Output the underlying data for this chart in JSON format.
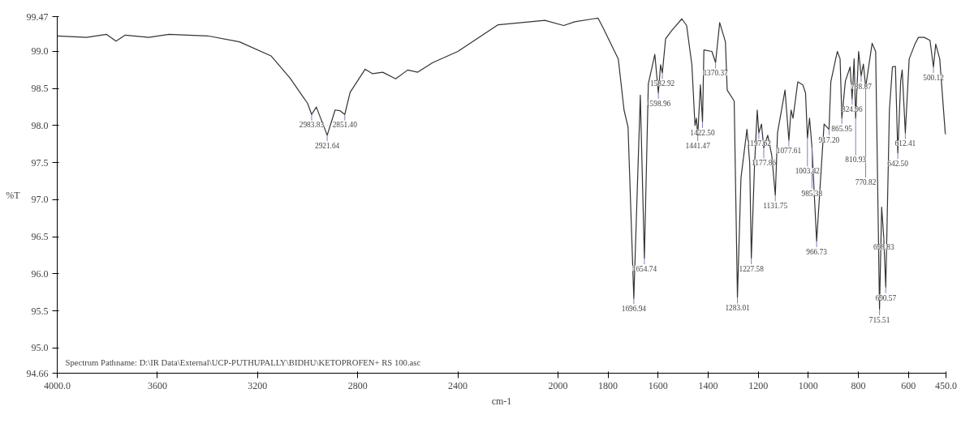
{
  "chart_data": {
    "type": "line",
    "xlabel": "cm-1",
    "ylabel": "%T",
    "xlim": [
      4000,
      450
    ],
    "ylim": [
      94.66,
      99.47
    ],
    "xticks": [
      {
        "value": 4000,
        "label": "4000.0"
      },
      3600,
      3200,
      2800,
      2400,
      2000,
      1800,
      1600,
      1400,
      1200,
      1000,
      800,
      600,
      {
        "value": 450,
        "label": "450.0"
      }
    ],
    "yticks": [
      94.66,
      {
        "value": 95,
        "label": "95.0"
      },
      95.5,
      {
        "value": 96,
        "label": "96.0"
      },
      96.5,
      {
        "value": 97,
        "label": "97.0"
      },
      97.5,
      {
        "value": 98,
        "label": "98.0"
      },
      98.5,
      {
        "value": 99,
        "label": "99.0"
      },
      99.47
    ],
    "grid": false,
    "marker": "none",
    "line_style": "solid",
    "series": [
      {
        "color": "#333333",
        "x": [
          4000,
          3883,
          3803,
          3765,
          3728,
          3634,
          3554,
          3399,
          3272,
          3146,
          3070,
          3023,
          3000,
          2983.83,
          2965,
          2921.64,
          2890,
          2870,
          2851.4,
          2830,
          2770,
          2740,
          2700,
          2648,
          2600,
          2560,
          2500,
          2400,
          2239,
          2052,
          1977,
          1933,
          1860,
          1840,
          1817,
          1759,
          1736,
          1720,
          1696.94,
          1671,
          1654.74,
          1639,
          1613,
          1598.96,
          1590,
          1582.92,
          1570,
          1546,
          1505,
          1486,
          1465,
          1452.5,
          1447,
          1441.47,
          1431,
          1422.5,
          1417,
          1385,
          1370.37,
          1354,
          1331,
          1324,
          1296,
          1283.01,
          1269,
          1245,
          1234,
          1227.58,
          1215,
          1204,
          1197.62,
          1187,
          1177.86,
          1162,
          1146,
          1131.75,
          1123,
          1093,
          1077.61,
          1069,
          1061,
          1042,
          1022,
          1011,
          1003.42,
          995,
          985.38,
          966.73,
          937,
          917.2,
          910,
          884,
          873,
          865.95,
          852,
          833,
          824.96,
          817,
          810.93,
          799,
          788.87,
          780,
          770.82,
          745,
          731,
          715.51,
          707,
          698.83,
          690.57,
          676,
          664,
          652,
          642.5,
          631,
          625,
          612.41,
          597,
          574,
          560,
          537,
          514,
          500.12,
          491,
          475,
          453,
          450
        ],
        "values": [
          99.21,
          99.19,
          99.23,
          99.14,
          99.22,
          99.19,
          99.23,
          99.21,
          99.13,
          98.94,
          98.64,
          98.41,
          98.3,
          98.15,
          98.25,
          97.87,
          98.21,
          98.2,
          98.15,
          98.45,
          98.76,
          98.7,
          98.72,
          98.63,
          98.75,
          98.72,
          98.85,
          99.0,
          99.36,
          99.42,
          99.35,
          99.4,
          99.44,
          99.45,
          99.3,
          98.9,
          98.21,
          97.98,
          95.67,
          98.41,
          96.21,
          98.56,
          98.96,
          98.44,
          98.82,
          98.71,
          99.17,
          99.28,
          99.44,
          99.35,
          98.82,
          98.0,
          98.1,
          97.87,
          98.55,
          98.05,
          99.02,
          99.0,
          98.85,
          99.39,
          99.13,
          98.48,
          98.33,
          95.68,
          97.29,
          97.95,
          97.5,
          96.21,
          97.44,
          98.21,
          97.9,
          98.02,
          97.7,
          97.87,
          97.6,
          97.06,
          97.9,
          98.48,
          97.8,
          98.21,
          98.1,
          98.59,
          98.55,
          98.44,
          97.83,
          98.1,
          97.71,
          96.44,
          98.02,
          97.95,
          98.59,
          99.0,
          98.9,
          98.1,
          98.6,
          98.79,
          98.36,
          98.9,
          98.1,
          99.0,
          98.67,
          98.83,
          98.52,
          99.11,
          99.0,
          95.52,
          96.9,
          96.5,
          95.82,
          98.21,
          98.79,
          98.8,
          97.63,
          98.6,
          98.75,
          97.9,
          98.9,
          99.1,
          99.19,
          99.19,
          99.15,
          98.79,
          99.1,
          98.9,
          97.9,
          97.88
        ]
      }
    ],
    "annotations": [
      {
        "text": "2983.83",
        "x": 2983.83,
        "y": 98.15
      },
      {
        "text": "2921.64",
        "x": 2921.64,
        "y": 97.87
      },
      {
        "text": "2851.40",
        "x": 2851.4,
        "y": 98.15
      },
      {
        "text": "1696.94",
        "x": 1696.94,
        "y": 95.67
      },
      {
        "text": "1654.74",
        "x": 1654.74,
        "y": 96.21
      },
      {
        "text": "1598.96",
        "x": 1598.96,
        "y": 98.44
      },
      {
        "text": "1582.92",
        "x": 1582.92,
        "y": 98.71
      },
      {
        "text": "1441.47",
        "x": 1441.47,
        "y": 97.87
      },
      {
        "text": "1422.50",
        "x": 1422.5,
        "y": 98.05
      },
      {
        "text": "1370.37",
        "x": 1370.37,
        "y": 98.85
      },
      {
        "text": "1283.01",
        "x": 1283.01,
        "y": 95.68
      },
      {
        "text": "1227.58",
        "x": 1227.58,
        "y": 96.21
      },
      {
        "text": "1197.62",
        "x": 1197.62,
        "y": 97.9
      },
      {
        "text": "1177.86",
        "x": 1177.86,
        "y": 97.7
      },
      {
        "text": "1131.75",
        "x": 1131.75,
        "y": 97.06
      },
      {
        "text": "1077.61",
        "x": 1077.61,
        "y": 97.8
      },
      {
        "text": "1003.42",
        "x": 1003.42,
        "y": 97.83
      },
      {
        "text": "985.38",
        "x": 985.38,
        "y": 97.71
      },
      {
        "text": "966.73",
        "x": 966.73,
        "y": 96.44
      },
      {
        "text": "917.20",
        "x": 917.2,
        "y": 97.95
      },
      {
        "text": "865.95",
        "x": 865.95,
        "y": 98.1
      },
      {
        "text": "824.96",
        "x": 824.96,
        "y": 98.36
      },
      {
        "text": "810.93",
        "x": 810.93,
        "y": 98.1
      },
      {
        "text": "788.87",
        "x": 788.87,
        "y": 98.67
      },
      {
        "text": "770.82",
        "x": 770.82,
        "y": 98.52
      },
      {
        "text": "715.51",
        "x": 715.51,
        "y": 95.52
      },
      {
        "text": "698.83",
        "x": 698.83,
        "y": 96.5
      },
      {
        "text": "690.57",
        "x": 690.57,
        "y": 95.82
      },
      {
        "text": "642.50",
        "x": 642.5,
        "y": 97.63
      },
      {
        "text": "612.41",
        "x": 612.41,
        "y": 97.9
      },
      {
        "text": "500.12",
        "x": 500.12,
        "y": 98.79
      },
      "Spectrum Pathname: D:\\IR Data\\External\\UCP-PUTHUPALLY\\BIDHU\\KETOPROFEN+ RS 100.asc"
    ]
  }
}
